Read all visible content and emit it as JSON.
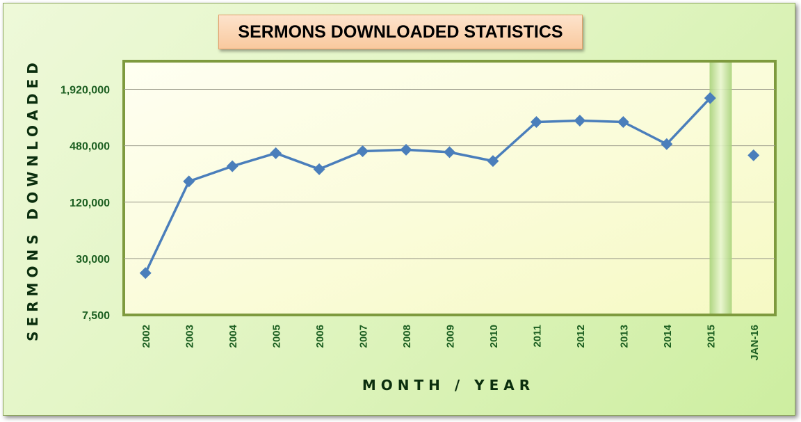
{
  "chart_data": {
    "type": "line",
    "title": "SERMONS DOWNLOADED STATISTICS",
    "xlabel": "MONTH / YEAR",
    "ylabel": "SERMONS DOWNLOADED",
    "yscale": "log",
    "ylim": [
      7500,
      3840000
    ],
    "yticks": [
      7500,
      30000,
      120000,
      480000,
      1920000
    ],
    "ytick_labels": [
      "7,500",
      "30,000",
      "120,000",
      "480,000",
      "1,920,000"
    ],
    "categories": [
      "2002",
      "2003",
      "2004",
      "2005",
      "2006",
      "2007",
      "2008",
      "2009",
      "2010",
      "2011",
      "2012",
      "2013",
      "2014",
      "2015",
      "JAN-16"
    ],
    "series": [
      {
        "name": "",
        "color": "#4a7ebb",
        "connected_points": 14,
        "values": [
          21000,
          200000,
          290000,
          400000,
          270000,
          420000,
          435000,
          410000,
          330000,
          860000,
          890000,
          860000,
          500000,
          1550000,
          380000
        ]
      }
    ],
    "grid": true,
    "legend": "none",
    "highlight_band_before": "JAN-16",
    "colors": {
      "plot_bg": "#fcfdd6",
      "frame_bg": "#dff5bd",
      "axis_text": "#1b5e20",
      "title_bg": "#fbd5b2"
    }
  }
}
